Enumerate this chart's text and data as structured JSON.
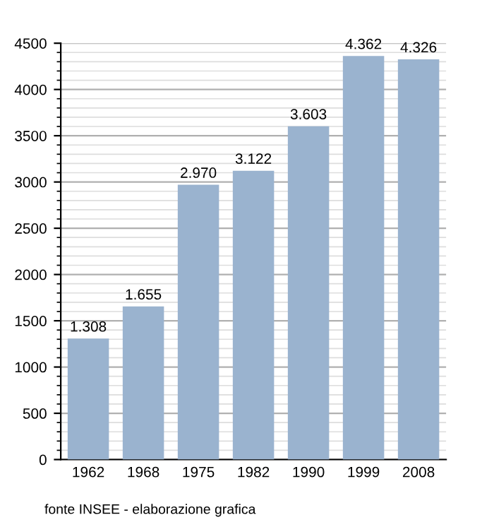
{
  "chart_data": {
    "type": "bar",
    "categories": [
      "1962",
      "1968",
      "1975",
      "1982",
      "1990",
      "1999",
      "2008"
    ],
    "values": [
      1308,
      1655,
      2970,
      3122,
      3603,
      4362,
      4326
    ],
    "value_labels": [
      "1.308",
      "1.655",
      "2.970",
      "3.122",
      "3.603",
      "4.362",
      "4.326"
    ],
    "color": "#9ab3cf",
    "ylim": [
      0,
      4500
    ],
    "yticks": [
      0,
      500,
      1000,
      1500,
      2000,
      2500,
      3000,
      3500,
      4000,
      4500
    ],
    "grid": "y",
    "annotations": [
      "fonte INSEE - elaborazione grafica"
    ]
  }
}
